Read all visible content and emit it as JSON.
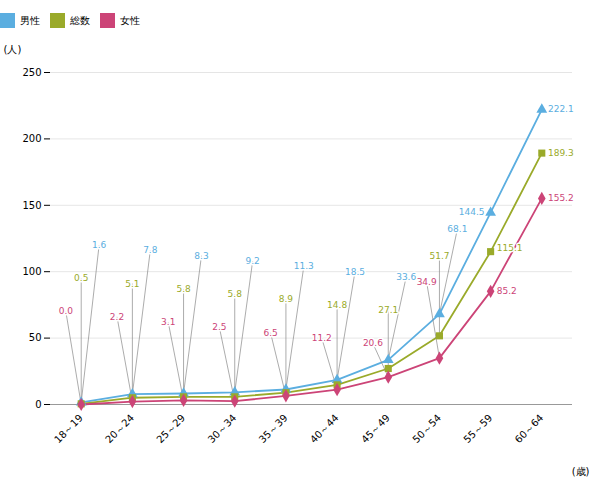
{
  "chart_data": {
    "type": "line",
    "categories": [
      "18～19",
      "20～24",
      "25～29",
      "30～34",
      "35～39",
      "40～44",
      "45～49",
      "50～54",
      "55～59",
      "60～64"
    ],
    "series": [
      {
        "name": "男性",
        "color": "#5baee0",
        "marker": "triangle",
        "values": [
          1.6,
          7.8,
          8.3,
          9.2,
          11.3,
          18.5,
          33.6,
          68.1,
          144.5,
          222.1
        ],
        "value_labels": [
          "1.6",
          "7.8",
          "8.3",
          "9.2",
          "11.3",
          "18.5",
          "33.6",
          "68.1",
          "144.5",
          "222.1"
        ]
      },
      {
        "name": "総数",
        "color": "#9aaa2a",
        "marker": "square",
        "values": [
          0.5,
          5.1,
          5.8,
          5.8,
          8.9,
          14.8,
          27.1,
          51.7,
          115.1,
          189.3
        ],
        "value_labels": [
          "0.5",
          "5.1",
          "5.8",
          "5.8",
          "8.9",
          "14.8",
          "27.1",
          "51.7",
          "115.1",
          "189.3"
        ]
      },
      {
        "name": "女性",
        "color": "#cc4477",
        "marker": "diamond",
        "values": [
          0.0,
          2.2,
          3.1,
          2.5,
          6.5,
          11.2,
          20.6,
          34.9,
          85.2,
          155.2
        ],
        "value_labels": [
          "0.0",
          "2.2",
          "3.1",
          "2.5",
          "6.5",
          "11.2",
          "20.6",
          "34.9",
          "85.2",
          "155.2"
        ]
      }
    ],
    "xlabel": "(歳)",
    "ylabel": "(人)",
    "ylim": [
      0,
      250
    ],
    "yticks": [
      0,
      50,
      100,
      150,
      200,
      250
    ],
    "grid": true,
    "legend": "upper left",
    "data_labels": true
  }
}
